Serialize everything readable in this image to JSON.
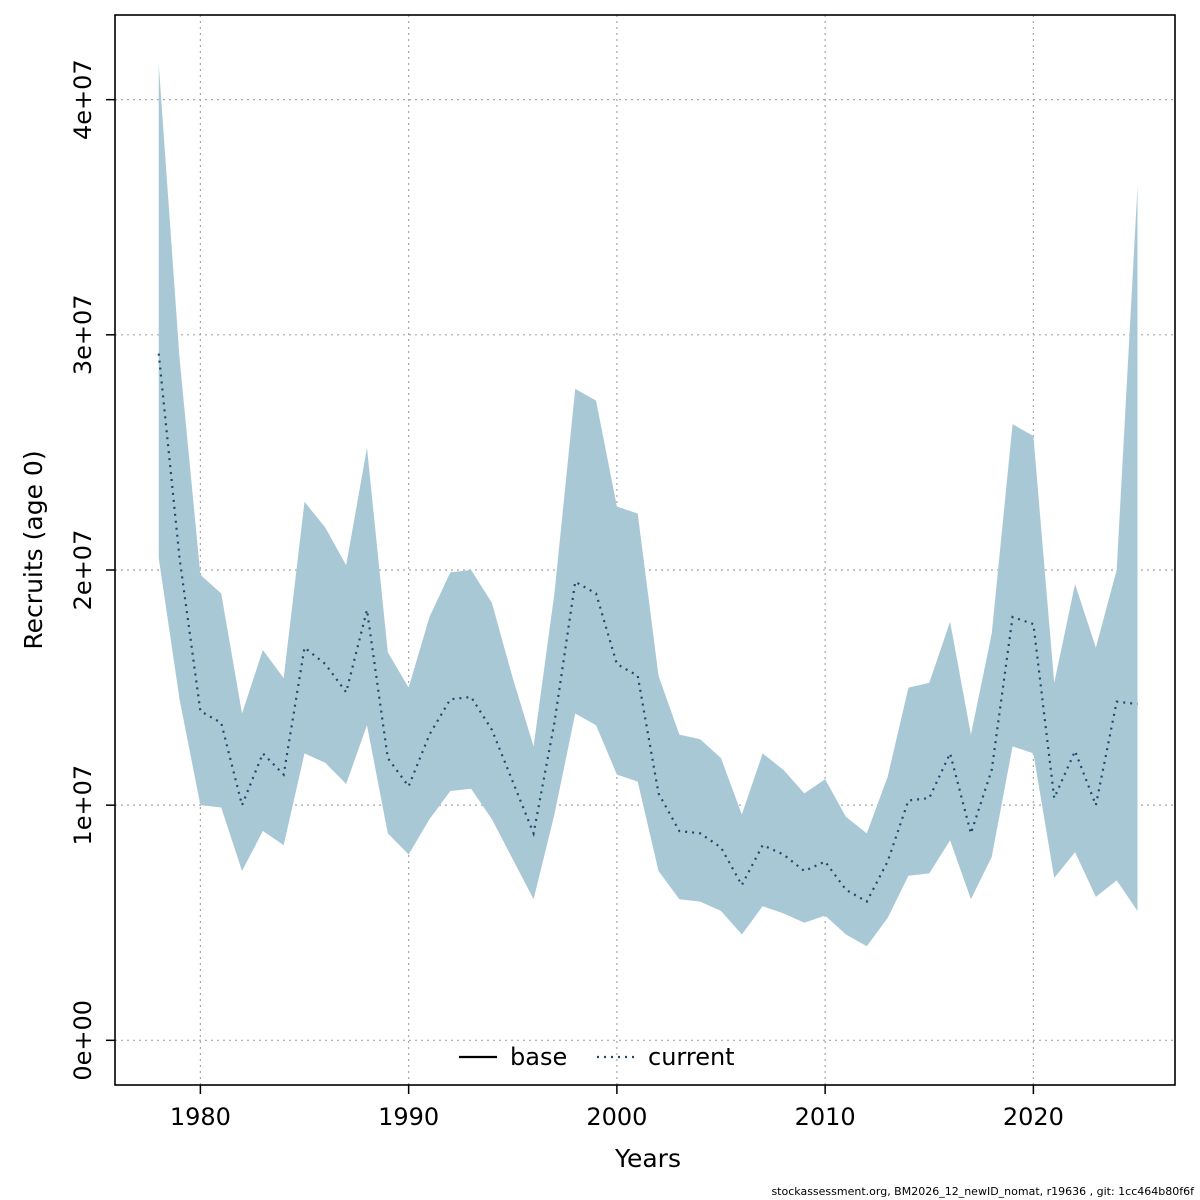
{
  "footer": "stockassessment.org, BM2026_12_newID_nomat, r19636 , git: 1cc464b80f6f",
  "chart_data": {
    "type": "area",
    "title": "",
    "xlabel": "Years",
    "ylabel": "Recruits (age 0)",
    "grid": true,
    "legend_position": "bottom-center-inside",
    "legend_labels": [
      "base",
      "current"
    ],
    "xlim": [
      1975.9,
      2026.8
    ],
    "ylim": [
      -1900000,
      43600000
    ],
    "x_ticks": [
      1980,
      1990,
      2000,
      2010,
      2020
    ],
    "x_tick_labels": [
      "1980",
      "1990",
      "2000",
      "2010",
      "2020"
    ],
    "y_ticks": [
      0,
      10000000,
      20000000,
      30000000,
      40000000
    ],
    "y_tick_labels": [
      "0e+00",
      "1e+07",
      "2e+07",
      "3e+07",
      "4e+07"
    ],
    "years": [
      1978,
      1979,
      1980,
      1981,
      1982,
      1983,
      1984,
      1985,
      1986,
      1987,
      1988,
      1989,
      1990,
      1991,
      1992,
      1993,
      1994,
      1995,
      1996,
      1997,
      1998,
      1999,
      2000,
      2001,
      2002,
      2003,
      2004,
      2005,
      2006,
      2007,
      2008,
      2009,
      2010,
      2011,
      2012,
      2013,
      2014,
      2015,
      2016,
      2017,
      2018,
      2019,
      2020,
      2021,
      2022,
      2023,
      2024,
      2025
    ],
    "series": [
      {
        "name": "base",
        "style": "solid",
        "color": "#000000",
        "visible_in_plot": false
      },
      {
        "name": "current",
        "style": "dotted",
        "color": "#1b4a6b",
        "band_color": "#a9c8d6",
        "values": [
          29200000,
          20500000,
          14000000,
          13500000,
          10000000,
          12200000,
          11300000,
          16700000,
          16000000,
          14800000,
          18300000,
          12000000,
          10800000,
          13000000,
          14500000,
          14600000,
          13200000,
          11000000,
          8800000,
          13500000,
          19500000,
          19000000,
          16000000,
          15500000,
          10500000,
          8900000,
          8800000,
          8200000,
          6600000,
          8300000,
          7900000,
          7200000,
          7600000,
          6400000,
          5900000,
          7600000,
          10200000,
          10300000,
          12200000,
          8800000,
          11500000,
          18000000,
          17700000,
          10300000,
          12300000,
          10000000,
          14400000,
          14300000
        ],
        "upper": [
          41500000,
          29000000,
          19800000,
          19000000,
          13900000,
          16600000,
          15400000,
          22900000,
          21800000,
          20200000,
          25200000,
          16500000,
          15000000,
          18000000,
          19900000,
          20000000,
          18600000,
          15400000,
          12500000,
          19000000,
          27700000,
          27200000,
          22700000,
          22400000,
          15500000,
          13000000,
          12800000,
          12000000,
          9600000,
          12200000,
          11500000,
          10500000,
          11100000,
          9500000,
          8800000,
          11200000,
          15000000,
          15200000,
          17800000,
          13000000,
          17300000,
          26200000,
          25700000,
          15200000,
          19400000,
          16700000,
          20000000,
          36300000
        ],
        "lower": [
          20500000,
          14500000,
          10000000,
          9900000,
          7200000,
          8900000,
          8300000,
          12200000,
          11800000,
          10900000,
          13400000,
          8800000,
          7900000,
          9400000,
          10600000,
          10700000,
          9400000,
          7700000,
          6000000,
          9600000,
          13900000,
          13400000,
          11300000,
          11000000,
          7200000,
          6000000,
          5900000,
          5500000,
          4500000,
          5700000,
          5400000,
          5000000,
          5300000,
          4500000,
          4000000,
          5200000,
          7000000,
          7100000,
          8500000,
          6000000,
          7800000,
          12500000,
          12200000,
          6900000,
          8000000,
          6100000,
          6800000,
          5500000
        ]
      }
    ]
  }
}
